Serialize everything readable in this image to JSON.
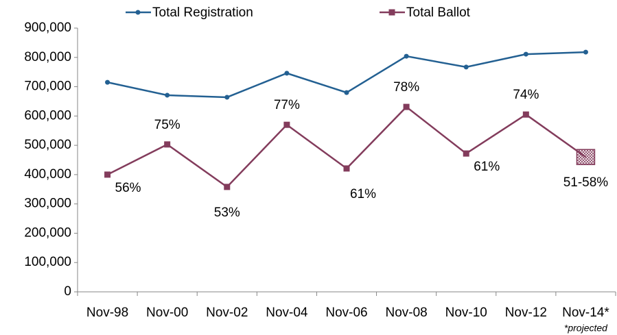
{
  "chart_data": {
    "type": "line",
    "categories": [
      "Nov-98",
      "Nov-00",
      "Nov-02",
      "Nov-04",
      "Nov-06",
      "Nov-08",
      "Nov-10",
      "Nov-12",
      "Nov-14*"
    ],
    "series": [
      {
        "name": "Total Registration",
        "color": "#236092",
        "marker": "circle",
        "values": [
          715000,
          671000,
          664000,
          746000,
          680000,
          804000,
          767000,
          811000,
          818000
        ]
      },
      {
        "name": "Total Ballot",
        "color": "#833c5c",
        "marker": "square",
        "values": [
          400000,
          503000,
          358000,
          570000,
          421000,
          631000,
          472000,
          605000,
          460000
        ]
      }
    ],
    "annotations": [
      "56%",
      "75%",
      "53%",
      "77%",
      "61%",
      "78%",
      "61%",
      "74%",
      "51-58%"
    ],
    "note": "*projected",
    "ylim": [
      0,
      900000
    ],
    "yticks": [
      0,
      {
        "value": 100000,
        "label": "100,000"
      },
      {
        "value": 200000,
        "label": "200,000"
      },
      {
        "value": 300000,
        "label": "300,000"
      },
      {
        "value": 400000,
        "label": "400,000"
      },
      {
        "value": 500000,
        "label": "500,000"
      },
      {
        "value": 600000,
        "label": "600,000"
      },
      {
        "value": 700000,
        "label": "700,000"
      },
      {
        "value": 800000,
        "label": "800,000"
      },
      {
        "value": 900000,
        "label": "900,000"
      }
    ],
    "grid": false,
    "legend": "top"
  }
}
